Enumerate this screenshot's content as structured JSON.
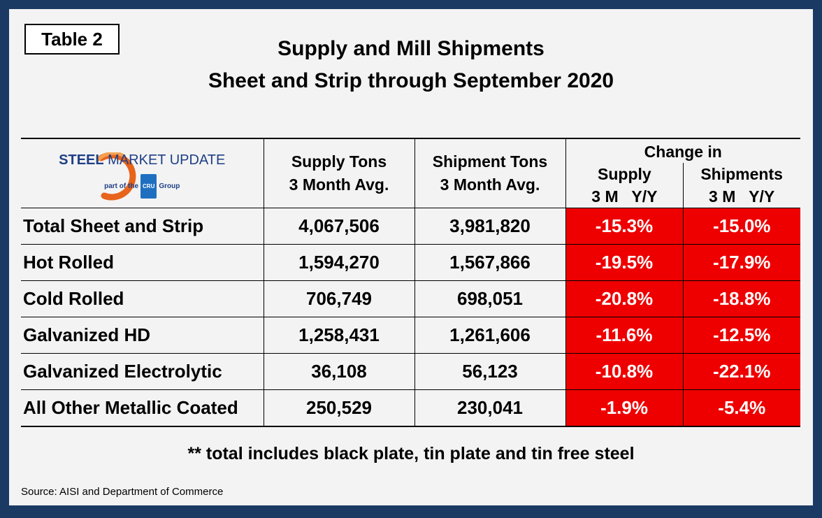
{
  "table_tag": "Table 2",
  "title_line1": "Supply and Mill Shipments",
  "title_line2": "Sheet and Strip through September 2020",
  "logo": {
    "word1": "STEEL",
    "word2": " MARKET UPDATE",
    "sub_prefix": "part of the",
    "badge": "CRU",
    "sub_suffix": "Group",
    "accent_color": "#e8631b"
  },
  "headers": {
    "supply_line1": "Supply Tons",
    "supply_line2": "3 Month Avg.",
    "shipment_line1": "Shipment Tons",
    "shipment_line2": "3 Month Avg.",
    "change_title": "Change in",
    "change_supply": "Supply",
    "change_supply_sub": "3 M   Y/Y",
    "change_shipments": "Shipments",
    "change_shipments_sub": "3 M   Y/Y"
  },
  "rows": [
    {
      "label": "Total Sheet and Strip",
      "supply": "4,067,506",
      "shipment": "3,981,820",
      "chg_supply": "-15.3%",
      "chg_ship": "-15.0%"
    },
    {
      "label": "Hot Rolled",
      "supply": "1,594,270",
      "shipment": "1,567,866",
      "chg_supply": "-19.5%",
      "chg_ship": "-17.9%"
    },
    {
      "label": "Cold Rolled",
      "supply": "706,749",
      "shipment": "698,051",
      "chg_supply": "-20.8%",
      "chg_ship": "-18.8%"
    },
    {
      "label": "Galvanized HD",
      "supply": "1,258,431",
      "shipment": "1,261,606",
      "chg_supply": "-11.6%",
      "chg_ship": "-12.5%"
    },
    {
      "label": "Galvanized Electrolytic",
      "supply": "36,108",
      "shipment": "56,123",
      "chg_supply": "-10.8%",
      "chg_ship": "-22.1%"
    },
    {
      "label": "All Other Metallic Coated",
      "supply": "250,529",
      "shipment": "230,041",
      "chg_supply": "-1.9%",
      "chg_ship": "-5.4%"
    }
  ],
  "negative_color": "#ee0000",
  "footnote": "** total includes black plate, tin plate and tin free steel",
  "source": "Source: AISI and Department of Commerce"
}
